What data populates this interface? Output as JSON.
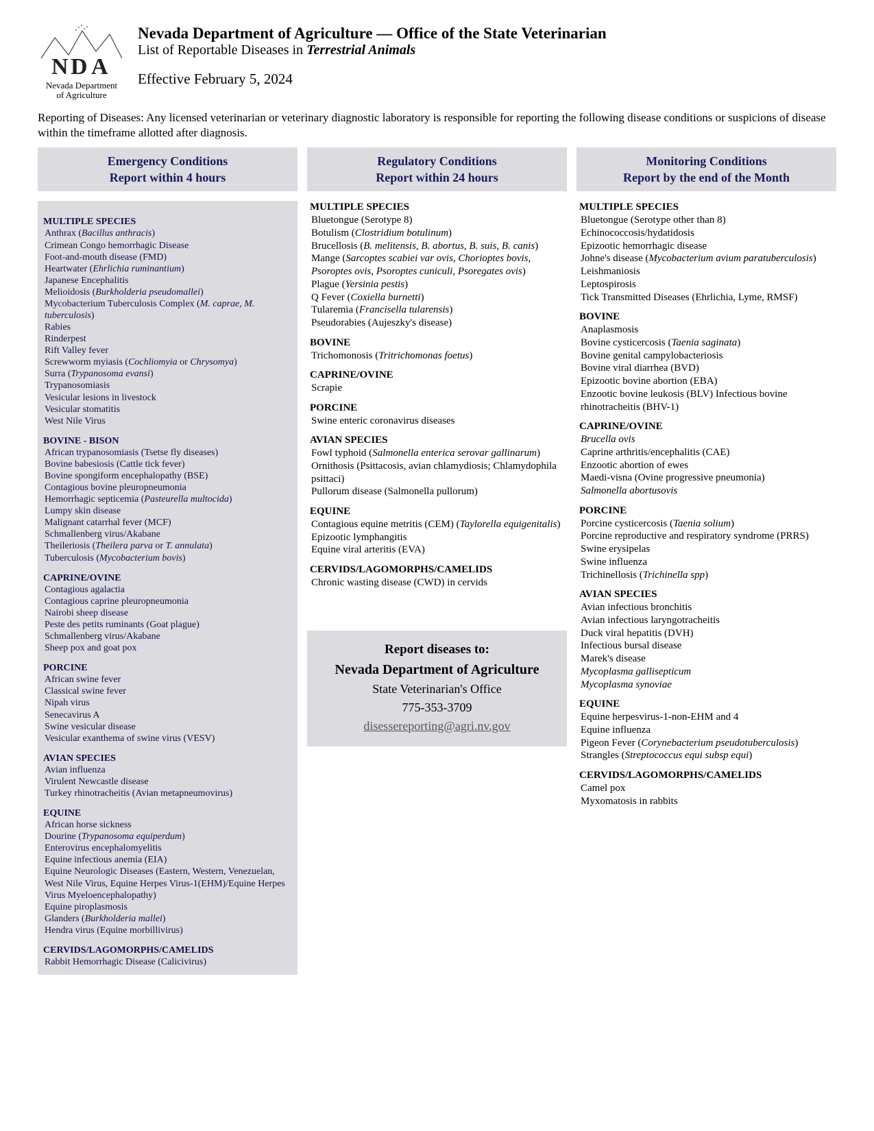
{
  "header": {
    "logo_caption_line1": "Nevada Department",
    "logo_caption_line2": "of Agriculture",
    "title_main": "Nevada Department of Agriculture  — Office of the State Veterinarian",
    "title_sub_prefix": "List of Reportable Diseases in ",
    "title_sub_ital": "Terrestrial Animals",
    "effective": "Effective February 5, 2024"
  },
  "intro": "Reporting of Diseases: Any licensed veterinarian or veterinary diagnostic laboratory is responsible for reporting the following disease conditions or suspicions of disease within the timeframe allotted after diagnosis.",
  "column_headers": {
    "emergency_l1": "Emergency Conditions",
    "emergency_l2": "Report within 4 hours",
    "regulatory_l1": "Regulatory Conditions",
    "regulatory_l2": "Report within 24 hours",
    "monitoring_l1": "Monitoring Conditions",
    "monitoring_l2": "Report by the end of the Month"
  },
  "emergency": [
    {
      "head": "MULTIPLE SPECIES",
      "items": [
        "Anthrax (<i>Bacillus anthracis</i>)",
        "Crimean Congo hemorrhagic Disease",
        "Foot-and-mouth disease (FMD)",
        "Heartwater (<i>Ehrlichia ruminantium</i>)",
        "Japanese Encephalitis",
        "Melioidosis (<i>Burkholderia pseudomallei</i>)",
        "Mycobacterium Tuberculosis Complex (<i>M. caprae, M. tuberculosis</i>)",
        "Rabies",
        "Rinderpest",
        "Rift Valley fever",
        "Screwworm myiasis (<i>Cochliomyia</i> or <i>Chrysomya</i>)",
        "Surra (<i>Trypanosoma evansi</i>)",
        "Trypanosomiasis",
        "Vesicular lesions in livestock",
        "Vesicular stomatitis",
        "West Nile Virus"
      ]
    },
    {
      "head": "BOVINE - BISON",
      "items": [
        "African trypanosomiasis (Tsetse fly diseases)",
        "Bovine babesiosis (Cattle tick fever)",
        "Bovine spongiform encephalopathy (BSE)",
        "Contagious bovine pleuropneumonia",
        "Hemorrhagic septicemia (<i>Pasteurella multocida</i>)",
        "Lumpy skin disease",
        "Malignant catarrhal fever (MCF)",
        "Schmallenberg virus/Akabane",
        "Theileriosis (<i>Theilera parva</i> or <i>T. annulata</i>)",
        "Tuberculosis (<i>Mycobacterium bovis</i>)"
      ]
    },
    {
      "head": "CAPRINE/OVINE",
      "items": [
        "Contagious agalactia",
        "Contagious caprine pleuropneumonia",
        "Nairobi sheep disease",
        "Peste des petits ruminants (Goat plague)",
        "Schmallenberg virus/Akabane",
        "Sheep pox and goat pox"
      ]
    },
    {
      "head": "PORCINE",
      "items": [
        "African swine fever",
        "Classical swine fever",
        "Nipah virus",
        "Senecavirus A",
        "Swine vesicular disease",
        "Vesicular exanthema of swine virus (VESV)"
      ]
    },
    {
      "head": "AVIAN SPECIES",
      "items": [
        "Avian influenza",
        "Virulent Newcastle disease",
        "Turkey rhinotracheitis (Avian metapneumovirus)"
      ]
    },
    {
      "head": "EQUINE",
      "items": [
        "African horse sickness",
        "Dourine (<i>Trypanosoma equiperdum</i>)",
        "Enterovirus encephalomyelitis",
        "Equine infectious anemia (EIA)",
        "Equine Neurologic Diseases (Eastern, Western, Venezuelan, West Nile Virus, Equine Herpes Virus-1(EHM)/Equine Herpes Virus Myeloencephalopathy)",
        "Equine piroplasmosis",
        "Glanders (<i>Burkholderia mallei</i>)",
        "Hendra virus (Equine morbillivirus)"
      ]
    },
    {
      "head": "CERVIDS/LAGOMORPHS/CAMELIDS",
      "items": [
        "Rabbit Hemorrhagic Disease (Calicivirus)"
      ]
    }
  ],
  "regulatory": [
    {
      "head": "MULTIPLE SPECIES",
      "items": [
        "Bluetongue (Serotype 8)",
        "Botulism (<i>Clostridium botulinum</i>)",
        "Brucellosis (<i>B. melitensis, B. abortus, B. suis, B. canis</i>)",
        "Mange (<i>Sarcoptes scabiei var ovis, Chorioptes bovis, Psoroptes ovis, Psoroptes cuniculi, Psoregates ovis</i>)",
        "Plague (<i>Yersinia pestis</i>)",
        "Q Fever (<i>Coxiella burnetti</i>)",
        "Tularemia (<i>Francisella tularensis</i>)",
        "Pseudorabies (Aujeszky's disease)"
      ]
    },
    {
      "head": "BOVINE",
      "items": [
        "Trichomonosis (<i>Tritrichomonas foetus</i>)"
      ]
    },
    {
      "head": "CAPRINE/OVINE",
      "items": [
        "Scrapie"
      ]
    },
    {
      "head": "PORCINE",
      "items": [
        "Swine enteric coronavirus diseases"
      ]
    },
    {
      "head": "AVIAN SPECIES",
      "items": [
        "Fowl typhoid (<i>Salmonella enterica serovar gallinarum</i>)",
        "Ornithosis (Psittacosis, avian chlamydiosis; Chlamydophila psittaci)",
        "Pullorum disease (Salmonella pullorum)"
      ]
    },
    {
      "head": "EQUINE",
      "items": [
        "Contagious equine metritis (CEM) (<i>Taylorella equigenitalis</i>)",
        "Epizootic lymphangitis",
        "Equine viral arteritis (EVA)"
      ]
    },
    {
      "head": "CERVIDS/LAGOMORPHS/CAMELIDS",
      "items": [
        "Chronic wasting disease (CWD) in cervids"
      ]
    }
  ],
  "monitoring": [
    {
      "head": "MULTIPLE SPECIES",
      "items": [
        "Bluetongue (Serotype other than 8)",
        "Echinococcosis/hydatidosis",
        "Epizootic hemorrhagic disease",
        "Johne's disease (<i>Mycobacterium avium paratuberculosis</i>)",
        "Leishmaniosis",
        "Leptospirosis",
        "Tick Transmitted Diseases (Ehrlichia, Lyme, RMSF)"
      ]
    },
    {
      "head": "BOVINE",
      "items": [
        "Anaplasmosis",
        "Bovine cysticercosis (<i>Taenia saginata</i>)",
        "Bovine genital campylobacteriosis",
        "Bovine viral diarrhea (BVD)",
        "Epizootic bovine abortion (EBA)",
        "Enzootic bovine leukosis (BLV) Infectious bovine rhinotracheitis (BHV-1)"
      ]
    },
    {
      "head": "CAPRINE/OVINE",
      "items": [
        "<i>Brucella ovis</i>",
        "Caprine arthritis/encephalitis (CAE)",
        "Enzootic abortion of ewes",
        "Maedi-visna (Ovine progressive pneumonia)",
        "<i>Salmonella abortusovis</i>"
      ]
    },
    {
      "head": "PORCINE",
      "items": [
        "Porcine cysticercosis (<i>Taenia solium</i>)",
        "Porcine reproductive and respiratory syndrome (PRRS)",
        "Swine erysipelas",
        "Swine influenza",
        "Trichinellosis (<i>Trichinella spp</i>)"
      ]
    },
    {
      "head": "AVIAN SPECIES",
      "items": [
        "Avian infectious bronchitis",
        "Avian infectious laryngotracheitis",
        "Duck viral hepatitis (DVH)",
        "Infectious bursal disease",
        "Marek's disease",
        "<i>Mycoplasma gallisepticum</i>",
        "<i>Mycoplasma synoviae</i>"
      ]
    },
    {
      "head": "EQUINE",
      "items": [
        "Equine herpesvirus-1-non-EHM and 4",
        "Equine influenza",
        "Pigeon Fever (<i>Corynebacterium pseudotuberculosis</i>)",
        "Strangles (<i>Streptococcus equi subsp equi</i>)"
      ]
    },
    {
      "head": "CERVIDS/LAGOMORPHS/CAMELIDS",
      "items": [
        "Camel pox",
        "Myxomatosis in rabbits"
      ]
    }
  ],
  "report_box": {
    "title": "Report diseases to:",
    "dept": "Nevada Department of Agriculture",
    "office": "State Veterinarian's Office",
    "phone": "775-353-3709",
    "email": "disessereporting@agri.nv.gov"
  },
  "colors": {
    "box_bg": "#dcdce0",
    "box_text": "#1a1a60"
  }
}
